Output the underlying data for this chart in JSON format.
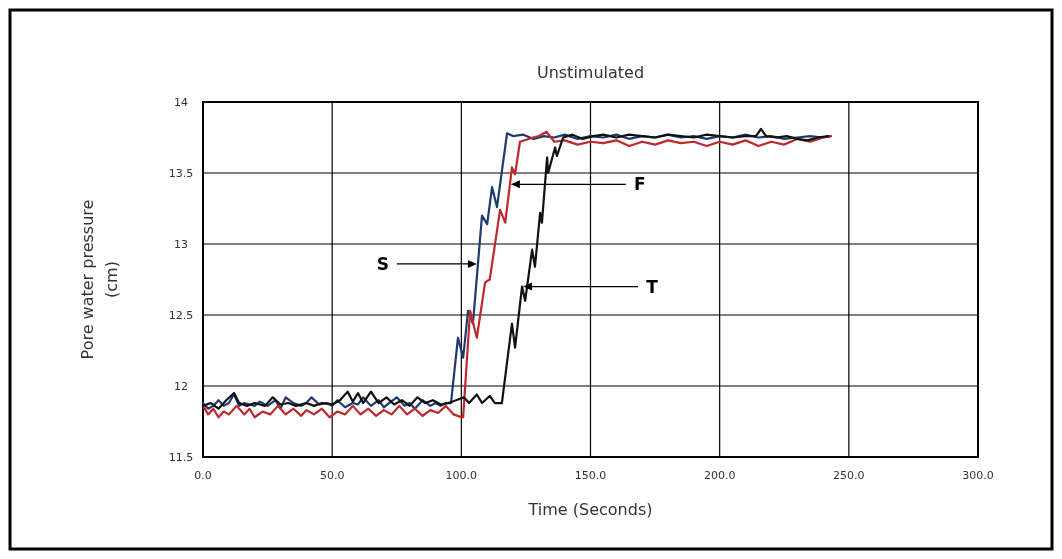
{
  "chart_data": {
    "type": "line",
    "title": "Unstimulated",
    "xlabel": "Time (Seconds)",
    "ylabel": "Pore water pressure (cm)",
    "xlim": [
      0,
      300
    ],
    "xticks": [
      {
        "value": 0,
        "label": "0.0"
      },
      {
        "value": 50,
        "label": "50.0"
      },
      {
        "value": 100,
        "label": "100.0"
      },
      {
        "value": 150,
        "label": "150.0"
      },
      {
        "value": 200,
        "label": "200.0"
      },
      {
        "value": 250,
        "label": "250.0"
      },
      {
        "value": 300,
        "label": "300.0"
      }
    ],
    "ylim": [
      11.5,
      14
    ],
    "yticks": [
      11.5,
      12,
      12.5,
      13,
      13.5,
      14
    ],
    "grid": true,
    "line_style": "solid",
    "series": [
      {
        "color": "#1f3a6e",
        "x": [
          0,
          2,
          4,
          6,
          8,
          10,
          12,
          14,
          16,
          18,
          20,
          22,
          25,
          28,
          30,
          32,
          35,
          38,
          40,
          42,
          45,
          48,
          50,
          52,
          55,
          58,
          60,
          62,
          65,
          68,
          70,
          72,
          75,
          78,
          80,
          82,
          85,
          88,
          90,
          92,
          94,
          96,
          98.7,
          100.7,
          102.6,
          104.5,
          108,
          110,
          111.9,
          113.8,
          117.7,
          120,
          124,
          128,
          132,
          136,
          140,
          145,
          150,
          155,
          160,
          165,
          170,
          175,
          180,
          185,
          190,
          195,
          200,
          205,
          210,
          215,
          220,
          225,
          230,
          235,
          240,
          243
        ],
        "values": [
          11.88,
          11.84,
          11.86,
          11.9,
          11.86,
          11.88,
          11.94,
          11.86,
          11.88,
          11.87,
          11.86,
          11.89,
          11.86,
          11.9,
          11.84,
          11.92,
          11.88,
          11.86,
          11.88,
          11.92,
          11.87,
          11.88,
          11.86,
          11.9,
          11.85,
          11.88,
          11.87,
          11.92,
          11.86,
          11.9,
          11.85,
          11.88,
          11.92,
          11.86,
          11.88,
          11.84,
          11.9,
          11.86,
          11.88,
          11.86,
          11.88,
          11.88,
          12.34,
          12.2,
          12.53,
          12.44,
          13.2,
          13.14,
          13.4,
          13.26,
          13.78,
          13.76,
          13.77,
          13.74,
          13.76,
          13.75,
          13.77,
          13.74,
          13.76,
          13.75,
          13.77,
          13.74,
          13.76,
          13.75,
          13.77,
          13.75,
          13.76,
          13.74,
          13.76,
          13.75,
          13.77,
          13.75,
          13.76,
          13.74,
          13.75,
          13.76,
          13.75,
          13.76
        ]
      },
      {
        "color": "#c0272d",
        "x": [
          0,
          2,
          4,
          6,
          8,
          10,
          13,
          16,
          18,
          20,
          23,
          26,
          29,
          32,
          35,
          38,
          40,
          43,
          46,
          49,
          52,
          55,
          58,
          61,
          64,
          67,
          70,
          73,
          76,
          79,
          82,
          85,
          88,
          91,
          94,
          97,
          100,
          100.7,
          103.4,
          106,
          109.2,
          111,
          115,
          117,
          119.6,
          120.8,
          122.7,
          126,
          130,
          133,
          136,
          140,
          145,
          150,
          155,
          160,
          165,
          170,
          175,
          180,
          185,
          190,
          195,
          200,
          205,
          210,
          215,
          220,
          225,
          230,
          235,
          240,
          243
        ],
        "values": [
          11.86,
          11.8,
          11.84,
          11.78,
          11.82,
          11.8,
          11.86,
          11.8,
          11.84,
          11.78,
          11.82,
          11.8,
          11.86,
          11.8,
          11.84,
          11.79,
          11.83,
          11.8,
          11.84,
          11.78,
          11.82,
          11.8,
          11.86,
          11.8,
          11.84,
          11.79,
          11.83,
          11.8,
          11.86,
          11.8,
          11.84,
          11.79,
          11.83,
          11.81,
          11.86,
          11.8,
          11.78,
          11.78,
          12.53,
          12.34,
          12.73,
          12.75,
          13.24,
          13.15,
          13.54,
          13.49,
          13.72,
          13.74,
          13.76,
          13.79,
          13.72,
          13.73,
          13.7,
          13.72,
          13.71,
          13.73,
          13.69,
          13.72,
          13.7,
          13.73,
          13.71,
          13.72,
          13.69,
          13.72,
          13.7,
          13.73,
          13.69,
          13.72,
          13.7,
          13.74,
          13.72,
          13.75,
          13.76
        ]
      },
      {
        "color": "#111111",
        "x": [
          0,
          3,
          6,
          9,
          12,
          14,
          17,
          20,
          24,
          27,
          30,
          33,
          36,
          40,
          43,
          46,
          50,
          53,
          56,
          58,
          60,
          62,
          65,
          68,
          71,
          74,
          77,
          80,
          83,
          86,
          89,
          92,
          95,
          98,
          101,
          103,
          106,
          108,
          111,
          113,
          115.7,
          119.6,
          120.8,
          123.5,
          124.7,
          127.4,
          128.5,
          130.5,
          131.2,
          133.2,
          133.6,
          136.3,
          137,
          139.4,
          143,
          147,
          151,
          155,
          160,
          165,
          170,
          175,
          180,
          185,
          190,
          195,
          200,
          205,
          210,
          214,
          216,
          218,
          222,
          226,
          230,
          234,
          238,
          242
        ],
        "values": [
          11.86,
          11.88,
          11.84,
          11.9,
          11.95,
          11.88,
          11.86,
          11.88,
          11.86,
          11.92,
          11.87,
          11.88,
          11.86,
          11.88,
          11.86,
          11.88,
          11.87,
          11.9,
          11.96,
          11.89,
          11.95,
          11.88,
          11.96,
          11.88,
          11.92,
          11.87,
          11.9,
          11.86,
          11.92,
          11.88,
          11.9,
          11.87,
          11.88,
          11.9,
          11.92,
          11.88,
          11.94,
          11.88,
          11.93,
          11.88,
          11.88,
          12.44,
          12.27,
          12.7,
          12.6,
          12.96,
          12.84,
          13.22,
          13.15,
          13.61,
          13.5,
          13.68,
          13.62,
          13.75,
          13.77,
          13.74,
          13.76,
          13.77,
          13.75,
          13.77,
          13.76,
          13.75,
          13.77,
          13.76,
          13.75,
          13.77,
          13.76,
          13.75,
          13.76,
          13.76,
          13.81,
          13.76,
          13.75,
          13.76,
          13.74,
          13.73,
          13.75,
          13.76
        ]
      }
    ],
    "annotations": [
      {
        "text": "S",
        "x": 106.4,
        "y": 12.86
      },
      {
        "text": "F",
        "x": 118.8,
        "y": 13.42
      },
      {
        "text": "T",
        "x": 123.5,
        "y": 12.7
      }
    ]
  }
}
